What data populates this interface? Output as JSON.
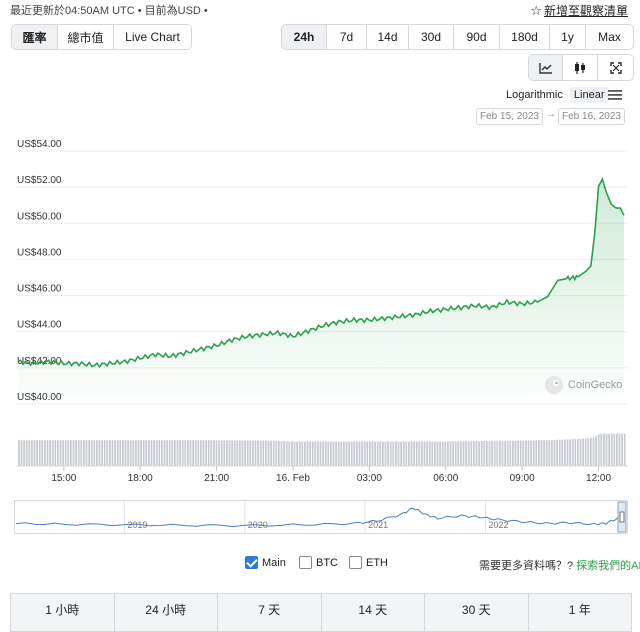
{
  "header": {
    "last_updated": "最近更新於04:50AM UTC • 目前為USD •",
    "watchlist_label": "新增至觀察清單",
    "watchlist_icon": "star-outline-icon"
  },
  "metric_tabs": [
    {
      "label": "匯率",
      "active": true
    },
    {
      "label": "總市值",
      "active": false
    },
    {
      "label": "Live Chart",
      "active": false
    }
  ],
  "range_tabs": [
    {
      "label": "24h",
      "active": true
    },
    {
      "label": "7d",
      "active": false
    },
    {
      "label": "14d",
      "active": false
    },
    {
      "label": "30d",
      "active": false
    },
    {
      "label": "90d",
      "active": false
    },
    {
      "label": "180d",
      "active": false
    },
    {
      "label": "1y",
      "active": false
    },
    {
      "label": "Max",
      "active": false
    }
  ],
  "chart_type_buttons": [
    "line-chart-icon",
    "candlestick-icon",
    "fullscreen-icon"
  ],
  "scale": {
    "logarithmic": "Logarithmic",
    "linear": "Linear",
    "active": "Linear"
  },
  "menu_icon": "hamburger-menu-icon",
  "date_range": {
    "from": "Feb 15, 2023",
    "to": "Feb 16, 2023",
    "arrow": "→"
  },
  "watermark": "CoinGecko",
  "chart_data": {
    "type": "area",
    "y_tick_labels": [
      "US$54.00",
      "US$52.00",
      "US$50.00",
      "US$48.00",
      "US$46.00",
      "US$44.00",
      "US$42.00",
      "US$40.00"
    ],
    "y_ticks": [
      54,
      52,
      50,
      48,
      46,
      44,
      42,
      40
    ],
    "ylim": [
      40,
      54
    ],
    "x_tick_labels": [
      "15:00",
      "18:00",
      "21:00",
      "16. Feb",
      "03:00",
      "06:00",
      "09:00",
      "12:00"
    ],
    "x_ticks": [
      15,
      18,
      21,
      24,
      27,
      30,
      33,
      36
    ],
    "xlim": [
      13.2,
      37.0
    ],
    "color": "#2aa14c",
    "grid": "horizontal",
    "price_series": [
      [
        13.2,
        41.9
      ],
      [
        13.8,
        41.8
      ],
      [
        14.4,
        41.9
      ],
      [
        15.0,
        41.8
      ],
      [
        15.6,
        41.8
      ],
      [
        16.2,
        41.7
      ],
      [
        16.8,
        41.8
      ],
      [
        17.4,
        41.9
      ],
      [
        18.0,
        42.1
      ],
      [
        18.6,
        42.3
      ],
      [
        19.2,
        42.2
      ],
      [
        19.8,
        42.4
      ],
      [
        20.4,
        42.6
      ],
      [
        21.0,
        42.8
      ],
      [
        21.6,
        43.1
      ],
      [
        22.2,
        43.3
      ],
      [
        22.8,
        43.4
      ],
      [
        23.4,
        43.5
      ],
      [
        24.0,
        43.3
      ],
      [
        24.6,
        43.6
      ],
      [
        25.2,
        43.9
      ],
      [
        25.8,
        44.1
      ],
      [
        26.4,
        44.2
      ],
      [
        27.0,
        44.2
      ],
      [
        27.6,
        44.3
      ],
      [
        28.2,
        44.4
      ],
      [
        28.8,
        44.5
      ],
      [
        29.4,
        44.7
      ],
      [
        30.0,
        44.8
      ],
      [
        30.6,
        44.9
      ],
      [
        31.2,
        45.0
      ],
      [
        31.8,
        44.9
      ],
      [
        32.4,
        45.2
      ],
      [
        33.0,
        45.1
      ],
      [
        33.6,
        45.2
      ],
      [
        34.0,
        45.5
      ],
      [
        34.4,
        46.4
      ],
      [
        34.8,
        46.5
      ],
      [
        35.2,
        46.6
      ],
      [
        35.5,
        46.9
      ],
      [
        35.7,
        47.2
      ],
      [
        35.85,
        49.0
      ],
      [
        36.0,
        51.6
      ],
      [
        36.15,
        52.0
      ],
      [
        36.3,
        51.3
      ],
      [
        36.5,
        50.6
      ],
      [
        36.7,
        50.4
      ],
      [
        36.85,
        50.4
      ],
      [
        37.0,
        50.0
      ]
    ],
    "volume_series": [
      [
        13.2,
        0.8
      ],
      [
        16.0,
        0.8
      ],
      [
        20.0,
        0.8
      ],
      [
        23.0,
        0.79
      ],
      [
        24.0,
        0.76
      ],
      [
        27.0,
        0.76
      ],
      [
        30.0,
        0.76
      ],
      [
        32.0,
        0.78
      ],
      [
        34.0,
        0.8
      ],
      [
        35.0,
        0.83
      ],
      [
        35.8,
        0.88
      ],
      [
        36.0,
        1.0
      ],
      [
        37.0,
        1.0
      ]
    ]
  },
  "navigator": {
    "year_labels": [
      "2019",
      "2020",
      "2021",
      "2022"
    ],
    "year_positions": [
      2019,
      2020,
      2021,
      2022
    ],
    "xlim": [
      2018.1,
      2023.15
    ],
    "series": [
      [
        2018.1,
        0.25
      ],
      [
        2018.5,
        0.22
      ],
      [
        2019.0,
        0.2
      ],
      [
        2019.5,
        0.18
      ],
      [
        2020.0,
        0.17
      ],
      [
        2020.5,
        0.2
      ],
      [
        2020.9,
        0.25
      ],
      [
        2021.1,
        0.35
      ],
      [
        2021.3,
        0.6
      ],
      [
        2021.4,
        0.85
      ],
      [
        2021.5,
        0.6
      ],
      [
        2021.6,
        0.45
      ],
      [
        2021.8,
        0.55
      ],
      [
        2021.95,
        0.5
      ],
      [
        2022.1,
        0.4
      ],
      [
        2022.3,
        0.32
      ],
      [
        2022.5,
        0.25
      ],
      [
        2022.7,
        0.28
      ],
      [
        2022.9,
        0.22
      ],
      [
        2023.0,
        0.26
      ],
      [
        2023.1,
        0.45
      ],
      [
        2023.15,
        0.55
      ]
    ]
  },
  "legend": [
    {
      "label": "Main",
      "checked": true
    },
    {
      "label": "BTC",
      "checked": false
    },
    {
      "label": "ETH",
      "checked": false
    }
  ],
  "more_data": {
    "question": "需要更多資料嗎？?",
    "link": "探索我們的API"
  },
  "period_table": [
    "1 小時",
    "24 小時",
    "7 天",
    "14 天",
    "30 天",
    "1 年"
  ]
}
